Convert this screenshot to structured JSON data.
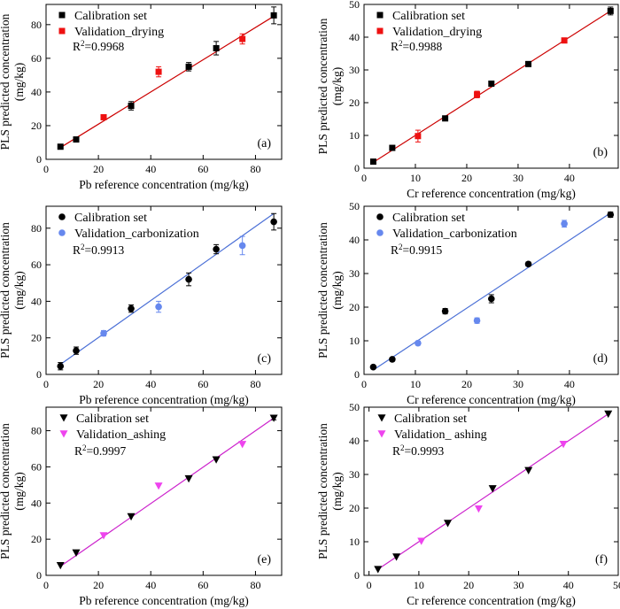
{
  "chart_data": [
    {
      "id": "a",
      "type": "scatter",
      "tag": "(a)",
      "xlabel": "Pb reference concentration (mg/kg)",
      "ylabel_lines": [
        "PLS predicted concentration",
        "(mg/kg)"
      ],
      "xlim": [
        0,
        90
      ],
      "ylim": [
        0,
        92
      ],
      "xticks": [
        0,
        20,
        40,
        60,
        80
      ],
      "yticks": [
        0,
        20,
        40,
        60,
        80
      ],
      "r2": "R²=0.9968",
      "fit": {
        "x": [
          5.5,
          87
        ],
        "y": [
          7,
          85
        ],
        "color": "#cc0000"
      },
      "series": [
        {
          "name": "Calibration set",
          "marker": "square",
          "color": "#000000",
          "points": [
            [
              5.5,
              7.5,
              1
            ],
            [
              11.5,
              11.8,
              1
            ],
            [
              32.5,
              31.8,
              2.5
            ],
            [
              54.5,
              55,
              2.5
            ],
            [
              65,
              66,
              4
            ],
            [
              87,
              85.5,
              5
            ]
          ]
        },
        {
          "name": "Validation_drying",
          "marker": "square",
          "color": "#ee1111",
          "points": [
            [
              22,
              25,
              1
            ],
            [
              43,
              52,
              3
            ],
            [
              75,
              71.5,
              3
            ]
          ]
        }
      ]
    },
    {
      "id": "b",
      "type": "scatter",
      "tag": "(b)",
      "xlabel": "Cr reference concentration (mg/kg)",
      "ylabel_lines": [
        "PLS predicted concentration",
        "(mg/kg)"
      ],
      "xlim": [
        0,
        49.5
      ],
      "ylim": [
        0,
        50
      ],
      "xticks": [
        0,
        10,
        20,
        30,
        40
      ],
      "yticks": [
        0,
        10,
        20,
        30,
        40,
        50
      ],
      "r2": "R²=0.9988",
      "fit": {
        "x": [
          1.8,
          48
        ],
        "y": [
          1.8,
          48
        ],
        "color": "#cc0000"
      },
      "series": [
        {
          "name": "Calibration set",
          "marker": "square",
          "color": "#000000",
          "points": [
            [
              1.8,
              2,
              0.3
            ],
            [
              5.5,
              6.2,
              0.4
            ],
            [
              15.8,
              15.2,
              0.6
            ],
            [
              24.8,
              25.8,
              0.7
            ],
            [
              32,
              31.8,
              0.7
            ],
            [
              48,
              48,
              1.2
            ]
          ]
        },
        {
          "name": "Validation_drying",
          "marker": "square",
          "color": "#ee1111",
          "points": [
            [
              10.5,
              9.8,
              1.8
            ],
            [
              22,
              22.5,
              1
            ],
            [
              39,
              39,
              0.4
            ]
          ]
        }
      ]
    },
    {
      "id": "c",
      "type": "scatter",
      "tag": "(c)",
      "xlabel": "Pb reference concentration (mg/kg)",
      "ylabel_lines": [
        "PLS predicted concentration",
        "(mg/kg)"
      ],
      "xlim": [
        0,
        90
      ],
      "ylim": [
        0,
        92
      ],
      "xticks": [
        0,
        20,
        40,
        60,
        80
      ],
      "yticks": [
        0,
        20,
        40,
        60,
        80
      ],
      "r2": "R²=0.9913",
      "fit": {
        "x": [
          5.5,
          87
        ],
        "y": [
          5.5,
          88
        ],
        "color": "#4a6fd6"
      },
      "series": [
        {
          "name": "Calibration set",
          "marker": "circle",
          "color": "#000000",
          "points": [
            [
              5.5,
              4.5,
              2
            ],
            [
              11.5,
              13,
              2
            ],
            [
              32.5,
              36,
              2
            ],
            [
              54.5,
              52,
              3.5
            ],
            [
              65,
              68.5,
              2.5
            ],
            [
              87,
              83.5,
              4.5
            ]
          ]
        },
        {
          "name": "Validation_carbonization",
          "marker": "circle",
          "color": "#6688ee",
          "points": [
            [
              22,
              22.5,
              1.5
            ],
            [
              43,
              37,
              3
            ],
            [
              75,
              70.5,
              5
            ]
          ]
        }
      ]
    },
    {
      "id": "d",
      "type": "scatter",
      "tag": "(d)",
      "xlabel": "Cr reference concentration (mg/kg)",
      "ylabel_lines": [
        "PLS predicted concentration",
        "(mg/kg)"
      ],
      "xlim": [
        0,
        49.5
      ],
      "ylim": [
        0,
        50
      ],
      "xticks": [
        0,
        10,
        20,
        30,
        40
      ],
      "yticks": [
        0,
        10,
        20,
        30,
        40,
        50
      ],
      "r2": "R²=0.9915",
      "fit": {
        "x": [
          1.8,
          48
        ],
        "y": [
          1.3,
          48
        ],
        "color": "#4a6fd6"
      },
      "series": [
        {
          "name": "Calibration set",
          "marker": "circle",
          "color": "#000000",
          "points": [
            [
              1.8,
              2.2,
              0.4
            ],
            [
              5.5,
              4.5,
              0.5
            ],
            [
              15.8,
              18.8,
              0.8
            ],
            [
              24.8,
              22.5,
              1.2
            ],
            [
              32,
              32.8,
              0.6
            ],
            [
              48,
              47.5,
              0.8
            ]
          ]
        },
        {
          "name": "Validation_carbonization",
          "marker": "circle",
          "color": "#6688ee",
          "points": [
            [
              10.5,
              9.3,
              0.6
            ],
            [
              22,
              16,
              0.8
            ],
            [
              39,
              44.8,
              1
            ]
          ]
        }
      ]
    },
    {
      "id": "e",
      "type": "scatter",
      "tag": "(e)",
      "xlabel": "Pb reference concentration (mg/kg)",
      "ylabel_lines": [
        "PLS predicted concentration",
        "(mg/kg)"
      ],
      "xlim": [
        0,
        90
      ],
      "ylim": [
        0,
        93
      ],
      "xticks": [
        0,
        20,
        40,
        60,
        80
      ],
      "yticks": [
        0,
        20,
        40,
        60,
        80
      ],
      "r2": "R²=0.9997",
      "fit": {
        "x": [
          5.5,
          87
        ],
        "y": [
          5,
          87
        ],
        "color": "#cc22cc"
      },
      "series": [
        {
          "name": "Calibration set",
          "marker": "triangle",
          "color": "#000000",
          "points": [
            [
              5.5,
              5.5,
              0
            ],
            [
              11.5,
              12.5,
              0
            ],
            [
              32.5,
              32.5,
              0
            ],
            [
              54.5,
              53.5,
              0
            ],
            [
              65,
              64,
              0
            ],
            [
              87,
              87,
              1
            ]
          ]
        },
        {
          "name": "Validation_ashing",
          "marker": "triangle",
          "color": "#ee44ee",
          "points": [
            [
              22,
              22,
              0
            ],
            [
              43,
              49.5,
              0
            ],
            [
              75,
              72.5,
              0
            ]
          ]
        }
      ]
    },
    {
      "id": "f",
      "type": "scatter",
      "tag": "(f)",
      "xlabel": "Cr reference concentration (mg/kg)",
      "ylabel_lines": [
        "PLS predicted concentration",
        "(mg/kg)"
      ],
      "xlim": [
        -1,
        50
      ],
      "ylim": [
        0,
        50
      ],
      "xticks": [
        0,
        10,
        20,
        30,
        40,
        50
      ],
      "yticks": [
        0,
        10,
        20,
        30,
        40,
        50
      ],
      "r2": "R²=0.9993",
      "fit": {
        "x": [
          1.8,
          48
        ],
        "y": [
          1.8,
          48
        ],
        "color": "#cc22cc"
      },
      "series": [
        {
          "name": "Calibration set",
          "marker": "triangle",
          "color": "#000000",
          "points": [
            [
              1.8,
              1.8,
              0
            ],
            [
              5.5,
              5.5,
              0
            ],
            [
              15.8,
              15.5,
              0
            ],
            [
              24.8,
              25.8,
              0
            ],
            [
              32,
              31.2,
              0
            ],
            [
              48,
              48,
              0
            ]
          ]
        },
        {
          "name": "Validation_ ashing",
          "marker": "triangle",
          "color": "#ee44ee",
          "points": [
            [
              10.5,
              10.2,
              0
            ],
            [
              22,
              19.8,
              0
            ],
            [
              39,
              39,
              0
            ]
          ]
        }
      ]
    }
  ]
}
